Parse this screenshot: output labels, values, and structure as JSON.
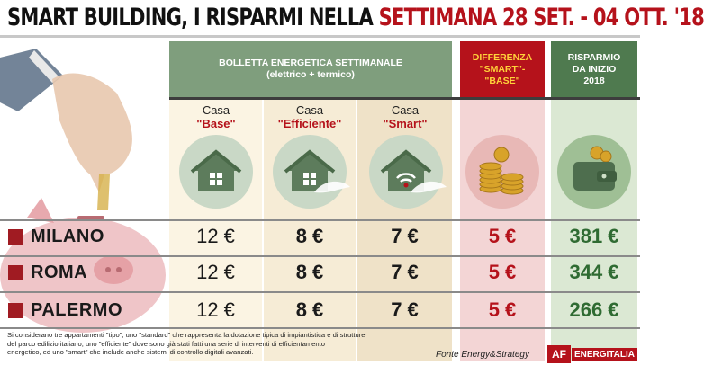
{
  "title": {
    "lead": "SMART BUILDING, I RISPARMI NELLA ",
    "accent": "SETTIMANA 28 SET. - 04 OTT. '18"
  },
  "headers": {
    "bolletta_line1": "BOLLETTA ENERGETICA SETTIMANALE",
    "bolletta_line2": "(elettrico + termico)",
    "diff_line1": "DIFFERENZA",
    "diff_line2": "\"SMART\"-",
    "diff_line3": "\"BASE\"",
    "ris_line1": "RISPARMIO",
    "ris_line2": "DA INIZIO",
    "ris_line3": "2018"
  },
  "casas": [
    {
      "word": "Casa",
      "type": "\"Base\""
    },
    {
      "word": "Casa",
      "type": "\"Efficiente\""
    },
    {
      "word": "Casa",
      "type": "\"Smart\""
    }
  ],
  "colors": {
    "accent_red": "#b5121b",
    "header_green": "#7f9e7d",
    "savings_green": "#2f6b32"
  },
  "chart_data": {
    "type": "table",
    "columns": [
      "Casa \"Base\"",
      "Casa \"Efficiente\"",
      "Casa \"Smart\"",
      "DIFFERENZA \"SMART\"-\"BASE\"",
      "RISPARMIO DA INIZIO 2018"
    ],
    "rows": [
      {
        "city": "MILANO",
        "values": [
          "12 €",
          "8 €",
          "7 €",
          "5 €",
          "381 €"
        ]
      },
      {
        "city": "ROMA",
        "values": [
          "12 €",
          "8 €",
          "7 €",
          "5 €",
          "344 €"
        ]
      },
      {
        "city": "PALERMO",
        "values": [
          "12 €",
          "8 €",
          "7 €",
          "5 €",
          "266 €"
        ]
      }
    ]
  },
  "footer": {
    "note_1": "Si considerano tre appartamenti \"tipo\", uno \"standard\" che rappresenta la dotazione tipica di impiantistica e di strutture",
    "note_2": "del parco edilizio italiano, uno \"efficiente\" dove sono già stati fatti una serie di interventi di efficientamento",
    "note_3": "energetico, ed uno \"smart\" che include anche sistemi di controllo digitali avanzati.",
    "fonte": "Fonte Energy&Strategy",
    "logo_mark": "AF",
    "logo_text": "ENERGITALIA"
  }
}
